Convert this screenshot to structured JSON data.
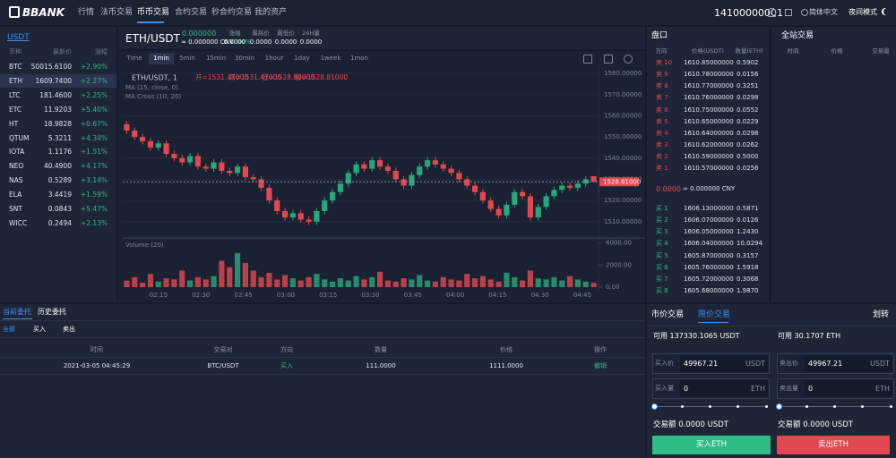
{
  "nav": {
    "logo": "BBANK",
    "items": [
      "行情",
      "法币交易",
      "币币交易",
      "合约交易",
      "秒合约交易",
      "我的资产"
    ],
    "active": 2,
    "phone": "14100000001",
    "language": "简体中文",
    "theme": "夜间模式"
  },
  "market": {
    "tab": "USDT",
    "headers": [
      "币种",
      "最新价",
      "涨幅"
    ],
    "active": 1,
    "rows": [
      [
        "BTC",
        "50015.6100",
        "+2.90%"
      ],
      [
        "ETH",
        "1609.7400",
        "+2.27%"
      ],
      [
        "LTC",
        "181.4600",
        "+2.25%"
      ],
      [
        "ETC",
        "11.9203",
        "+5.40%"
      ],
      [
        "HT",
        "18.9828",
        "+0.67%"
      ],
      [
        "QTUM",
        "5.3211",
        "+4.34%"
      ],
      [
        "IOTA",
        "1.1176",
        "+1.51%"
      ],
      [
        "NEO",
        "40.4900",
        "+4.17%"
      ],
      [
        "NAS",
        "0.5289",
        "+3.14%"
      ],
      [
        "ELA",
        "3.4419",
        "+1.59%"
      ],
      [
        "SNT",
        "0.0843",
        "+5.47%"
      ],
      [
        "WICC",
        "0.2494",
        "+2.13%"
      ]
    ]
  },
  "ticker": {
    "pair": "ETH/USDT",
    "price": "0.000000",
    "cny": "≈ 0.000000 CNY",
    "change": "+0.00%",
    "stats": [
      {
        "label": "涨幅",
        "value": "0.0000"
      },
      {
        "label": "最高价",
        "value": "0.0000"
      },
      {
        "label": "最低价",
        "value": "0.0000"
      },
      {
        "label": "24H量",
        "value": "0.0000"
      }
    ]
  },
  "kline": {
    "intervals": [
      "Time",
      "1min",
      "5min",
      "15min",
      "30min",
      "1hour",
      "1day",
      "1week",
      "1mon"
    ],
    "active_interval": 1,
    "legend": "ETH/USDT, 1",
    "ohlc": [
      "开=1531.47000",
      "高=1531.47000",
      "低=1528.80000",
      "收=1528.81000"
    ],
    "indicators": [
      "MA (15, close, 0)",
      "MA Cross (10, 20)"
    ],
    "volume_title": "Volume (20)",
    "ylim": [
      1504,
      1583
    ],
    "yticks": [
      {
        "value": 1510,
        "label": "1510.00000"
      },
      {
        "value": 1520,
        "label": "1520.00000"
      },
      {
        "value": 1530,
        "label": "1530.00000"
      },
      {
        "value": 1540,
        "label": "1540.00000"
      },
      {
        "value": 1550,
        "label": "1550.00000"
      },
      {
        "value": 1560,
        "label": "1560.00000"
      },
      {
        "value": 1570,
        "label": "1570.00000"
      },
      {
        "value": 1580,
        "label": "1580.00000"
      }
    ],
    "last_price": {
      "value": 1528.81,
      "label": "1528.81000"
    },
    "vlim": [
      0,
      4300
    ],
    "vticks": [
      {
        "value": 0,
        "label": "0.00"
      },
      {
        "value": 2000,
        "label": "2000.00"
      },
      {
        "value": 4000,
        "label": "4000.00"
      }
    ],
    "times": [
      "02:15",
      "02:30",
      "02:45",
      "03:00",
      "03:15",
      "03:30",
      "03:45",
      "04:00",
      "04:15",
      "04:30",
      "04:45"
    ],
    "open": [
      1556,
      1553,
      1550,
      1548,
      1545,
      1547,
      1542,
      1540,
      1538,
      1541,
      1536,
      1535,
      1538,
      1534,
      1533,
      1536,
      1531,
      1530,
      1526,
      1520,
      1515,
      1512,
      1514,
      1511,
      1510,
      1515,
      1520,
      1524,
      1528,
      1533,
      1537,
      1535,
      1539,
      1536,
      1534,
      1530,
      1527,
      1532,
      1536,
      1539,
      1537,
      1535,
      1533,
      1530,
      1527,
      1524,
      1520,
      1516,
      1513,
      1518,
      1524,
      1522,
      1512,
      1517,
      1522,
      1525,
      1527,
      1526,
      1528,
      1531.47
    ],
    "high": [
      1557.5,
      1554.5,
      1551.5,
      1549.5,
      1548.5,
      1548.5,
      1543.5,
      1541.5,
      1542.5,
      1542.5,
      1537.5,
      1539.5,
      1539.5,
      1535.5,
      1537.5,
      1537.5,
      1532.5,
      1531.5,
      1527.5,
      1521.5,
      1516.5,
      1515.5,
      1515.5,
      1512.5,
      1516.5,
      1521.5,
      1525.5,
      1529.5,
      1534.5,
      1538.5,
      1538.5,
      1540.5,
      1540.5,
      1537.5,
      1535.5,
      1531.5,
      1533.5,
      1537.5,
      1540.5,
      1540.5,
      1538.5,
      1536.5,
      1534.5,
      1531.5,
      1528.5,
      1525.5,
      1521.5,
      1517.5,
      1519.5,
      1525.5,
      1525.5,
      1523.5,
      1518.5,
      1523.5,
      1526.5,
      1528.5,
      1528.5,
      1529.5,
      1531.5,
      1531.47
    ],
    "low": [
      1551.5,
      1548.5,
      1546.5,
      1543.5,
      1543.5,
      1540.5,
      1538.5,
      1536.5,
      1536.5,
      1534.5,
      1533.5,
      1533.5,
      1532.5,
      1531.5,
      1531.5,
      1529.5,
      1528.5,
      1524.5,
      1518.5,
      1513.5,
      1510.5,
      1510.5,
      1509.5,
      1508.5,
      1508.5,
      1513.5,
      1518.5,
      1522.5,
      1526.5,
      1531.5,
      1533.5,
      1533.5,
      1534.5,
      1532.5,
      1528.5,
      1525.5,
      1525.5,
      1530.5,
      1534.5,
      1535.5,
      1533.5,
      1531.5,
      1528.5,
      1525.5,
      1522.5,
      1518.5,
      1514.5,
      1511.5,
      1511.5,
      1516.5,
      1520.5,
      1510.5,
      1510.5,
      1515.5,
      1520.5,
      1523.5,
      1524.5,
      1524.5,
      1526.5,
      1528.8
    ],
    "close": [
      1553,
      1550,
      1548,
      1545,
      1547,
      1542,
      1540,
      1538,
      1541,
      1536,
      1535,
      1538,
      1534,
      1533,
      1536,
      1531,
      1530,
      1526,
      1520,
      1515,
      1512,
      1514,
      1511,
      1510,
      1515,
      1520,
      1524,
      1528,
      1533,
      1537,
      1535,
      1539,
      1536,
      1534,
      1530,
      1527,
      1532,
      1536,
      1539,
      1537,
      1535,
      1533,
      1530,
      1527,
      1524,
      1520,
      1516,
      1513,
      1518,
      1524,
      1522,
      1512,
      1517,
      1522,
      1525,
      1527,
      1526,
      1528,
      1530,
      1528.81
    ],
    "volume": [
      600,
      900,
      400,
      1200,
      500,
      800,
      700,
      1500,
      600,
      900,
      700,
      1000,
      2400,
      1800,
      3100,
      2200,
      1500,
      900,
      1300,
      700,
      1100,
      800,
      600,
      900,
      1200,
      700,
      500,
      800,
      600,
      1000,
      700,
      900,
      1400,
      600,
      500,
      800,
      700,
      1100,
      600,
      500,
      900,
      700,
      600,
      1200,
      800,
      1000,
      700,
      500,
      1300,
      900,
      600,
      1500,
      800,
      700,
      900,
      600,
      1000,
      700,
      500,
      400
    ]
  },
  "orderbook": {
    "title": "盘口",
    "headers": [
      "方向",
      "价格(USDT)",
      "数量(ETH)"
    ],
    "asks": [
      [
        "卖 10",
        "1610.85000000",
        "0.5902"
      ],
      [
        "卖 9",
        "1610.78000000",
        "0.0156"
      ],
      [
        "卖 8",
        "1610.77000000",
        "0.3251"
      ],
      [
        "卖 7",
        "1610.76000000",
        "0.0298"
      ],
      [
        "卖 6",
        "1610.75000000",
        "0.0552"
      ],
      [
        "卖 5",
        "1610.65000000",
        "0.0229"
      ],
      [
        "卖 4",
        "1610.64000000",
        "0.0298"
      ],
      [
        "卖 3",
        "1610.62000000",
        "0.0262"
      ],
      [
        "卖 2",
        "1610.59000000",
        "0.5000"
      ],
      [
        "卖 1",
        "1610.57000000",
        "0.0256"
      ]
    ],
    "last": "0.0000",
    "last_cny": "≈ 0.000000 CNY",
    "bids": [
      [
        "买 1",
        "1606.13000000",
        "0.5871"
      ],
      [
        "买 2",
        "1606.07000000",
        "0.0126"
      ],
      [
        "买 3",
        "1606.05000000",
        "1.2430"
      ],
      [
        "买 4",
        "1606.04000000",
        "10.0294"
      ],
      [
        "买 5",
        "1605.87000000",
        "0.3157"
      ],
      [
        "买 6",
        "1605.76000000",
        "1.5918"
      ],
      [
        "买 7",
        "1605.72000000",
        "0.3068"
      ],
      [
        "买 8",
        "1605.68000000",
        "1.9870"
      ]
    ]
  },
  "trades": {
    "title": "全站交易",
    "headers": [
      "时间",
      "价格",
      "交易量"
    ]
  },
  "orders": {
    "tabs": [
      "当前委托",
      "历史委托"
    ],
    "filters": [
      "全部",
      "买入",
      "卖出"
    ],
    "headers": [
      "时间",
      "交易对",
      "方向",
      "数量",
      "价格",
      "操作"
    ],
    "rows": [
      [
        "2021-03-05 04:45:29",
        "BTC/USDT",
        "买入",
        "111.0000",
        "1111.0000",
        "撤销"
      ]
    ]
  },
  "trade_form": {
    "tabs": [
      "市价交易",
      "限价交易"
    ],
    "active_tab": 1,
    "transfer": "划转",
    "buy": {
      "available": "可用 137330.1065 USDT",
      "price_label": "买入价",
      "price": "49967.21",
      "price_unit": "USDT",
      "amount_label": "买入量",
      "amount": "0",
      "amount_unit": "ETH",
      "total": "交易额 0.0000 USDT",
      "button": "买入ETH"
    },
    "sell": {
      "available": "可用 30.1707 ETH",
      "price_label": "卖出价",
      "price": "49967.21",
      "price_unit": "USDT",
      "amount_label": "卖出量",
      "amount": "0",
      "amount_unit": "ETH",
      "total": "交易额 0.0000 USDT",
      "button": "卖出ETH"
    }
  }
}
